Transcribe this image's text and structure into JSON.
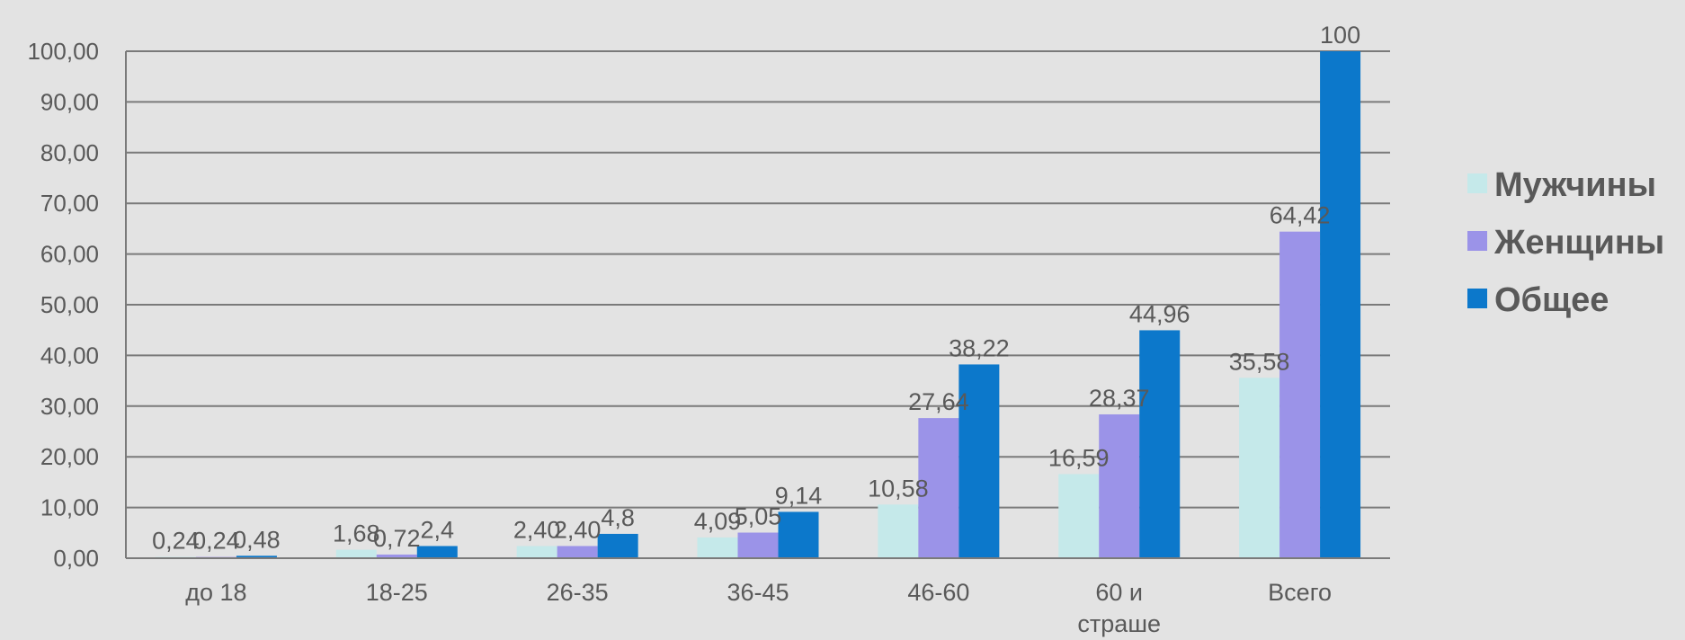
{
  "chart_data": {
    "type": "bar",
    "title": "",
    "xlabel": "",
    "ylabel": "",
    "ylim": [
      0,
      100
    ],
    "ytick_step": 10,
    "ytick_labels": [
      "0,00",
      "10,00",
      "20,00",
      "30,00",
      "40,00",
      "50,00",
      "60,00",
      "70,00",
      "80,00",
      "90,00",
      "100,00"
    ],
    "grid": true,
    "legend_position": "right",
    "categories": [
      [
        "до 18"
      ],
      [
        "18-25"
      ],
      [
        "26-35"
      ],
      [
        "36-45"
      ],
      [
        "46-60"
      ],
      [
        "60 и",
        "страше"
      ],
      [
        "Всего"
      ]
    ],
    "series": [
      {
        "name": "Мужчины",
        "color": "#c5e9ea",
        "values": [
          0.24,
          1.68,
          2.4,
          4.09,
          10.58,
          16.59,
          35.58
        ],
        "labels": [
          "0,24",
          "1,68",
          "2,40",
          "4,09",
          "10,58",
          "16,59",
          "35,58"
        ]
      },
      {
        "name": "Женщины",
        "color": "#9b93e8",
        "values": [
          0.24,
          0.72,
          2.4,
          5.05,
          27.64,
          28.37,
          64.42
        ],
        "labels": [
          "0,24",
          "0,72",
          "2,40",
          "5,05",
          "27,64",
          "28,37",
          "64,42"
        ]
      },
      {
        "name": "Общее",
        "color": "#0c78cb",
        "values": [
          0.48,
          2.4,
          4.8,
          9.14,
          38.22,
          44.96,
          100
        ],
        "labels": [
          "0,48",
          "2,4",
          "4,8",
          "9,14",
          "38,22",
          "44,96",
          "100"
        ]
      }
    ]
  }
}
